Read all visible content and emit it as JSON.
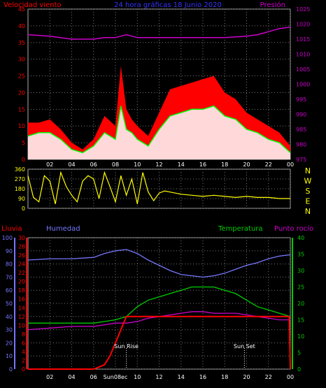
{
  "chart_data": [
    {
      "type": "line",
      "title": "24 hora gráficas   18 Junio 2020",
      "ylabel_left": "Velocidad viento",
      "ylabel_right": "Presión",
      "x_ticks": [
        "02",
        "04",
        "06",
        "08",
        "10",
        "12",
        "14",
        "16",
        "18",
        "20",
        "22",
        "00"
      ],
      "x_range": [
        0,
        24
      ],
      "y_left_ticks": [
        "0",
        "5",
        "10",
        "15",
        "20",
        "25",
        "30",
        "35",
        "40",
        "45"
      ],
      "y_left_range": [
        0,
        45
      ],
      "y_right_ticks": [
        "975",
        "980",
        "985",
        "990",
        "995",
        "1000",
        "1005",
        "1010",
        "1015",
        "1020",
        "1025"
      ],
      "y_right_range": [
        975,
        1025
      ],
      "grid": true,
      "colors": {
        "gust": "#ff0000",
        "wind": "#00ff00",
        "wind_fill": "#ffffff",
        "pressure": "#cc00cc",
        "title": "#3333ff"
      },
      "series": [
        {
          "role": "gust",
          "x": [
            0,
            1,
            2,
            3,
            4,
            5,
            6,
            7,
            8,
            8.5,
            9,
            9.5,
            10,
            11,
            12,
            13,
            14,
            15,
            16,
            17,
            18,
            19,
            20,
            21,
            22,
            23,
            24
          ],
          "values": [
            11,
            11,
            12,
            9,
            5,
            3,
            6,
            13,
            10,
            28,
            15,
            12,
            10,
            7,
            14,
            21,
            22,
            23,
            24,
            25,
            20,
            18,
            14,
            12,
            10,
            8,
            4
          ]
        },
        {
          "role": "wind",
          "x": [
            0,
            1,
            2,
            3,
            4,
            5,
            6,
            7,
            8,
            8.5,
            9,
            9.5,
            10,
            11,
            12,
            13,
            14,
            15,
            16,
            17,
            18,
            19,
            20,
            21,
            22,
            23,
            24
          ],
          "values": [
            7,
            8,
            8,
            6,
            3,
            2,
            4,
            8,
            6,
            16,
            9,
            8,
            6,
            4,
            9,
            13,
            14,
            15,
            15,
            16,
            13,
            12,
            9,
            8,
            6,
            5,
            2
          ]
        },
        {
          "role": "pressure",
          "x": [
            0,
            2,
            4,
            6,
            7,
            8,
            9,
            10,
            12,
            14,
            16,
            18,
            20,
            21,
            22,
            23,
            24
          ],
          "values": [
            1016.5,
            1016,
            1015,
            1015,
            1015.5,
            1015.5,
            1016.5,
            1015.5,
            1015.5,
            1015.5,
            1015.5,
            1015.5,
            1016,
            1016.5,
            1017.5,
            1018.5,
            1019
          ]
        }
      ]
    },
    {
      "type": "line",
      "ylabel": "",
      "y_ticks": [
        "0",
        "90",
        "180",
        "270",
        "360"
      ],
      "y_range": [
        0,
        360
      ],
      "direction_labels": [
        "N",
        "W",
        "S",
        "E",
        "N"
      ],
      "colors": {
        "direction": "#ffff00"
      },
      "series": [
        {
          "role": "direction",
          "x": [
            0,
            0.5,
            1,
            1.5,
            2,
            2.5,
            3,
            3.5,
            4,
            4.5,
            5,
            5.5,
            6,
            6.5,
            7,
            7.5,
            8,
            8.5,
            9,
            9.5,
            10,
            10.5,
            11,
            11.5,
            12,
            12.5,
            13,
            14,
            15,
            16,
            17,
            18,
            19,
            20,
            21,
            22,
            23,
            24
          ],
          "values": [
            300,
            100,
            60,
            300,
            250,
            40,
            330,
            200,
            120,
            60,
            250,
            300,
            270,
            90,
            330,
            200,
            60,
            300,
            120,
            270,
            40,
            330,
            150,
            70,
            140,
            160,
            150,
            130,
            120,
            110,
            120,
            110,
            100,
            110,
            100,
            100,
            90,
            90
          ]
        }
      ]
    },
    {
      "type": "line",
      "ylabel_left1": "Lluvia",
      "ylabel_left2": "Humedad",
      "ylabel_right1": "Temperatura",
      "ylabel_right2": "Punto rocío",
      "x_ticks": [
        "02",
        "04",
        "06",
        "Sun08ec",
        "10",
        "12",
        "14",
        "16",
        "18",
        "20",
        "22",
        "00"
      ],
      "humidity_ticks": [
        "0",
        "10",
        "20",
        "30",
        "40",
        "50",
        "60",
        "70",
        "80",
        "90",
        "100"
      ],
      "rain_ticks": [
        "0",
        "2",
        "4",
        "6",
        "8",
        "10",
        "12",
        "14",
        "16",
        "18",
        "20",
        "22",
        "24",
        "26",
        "28",
        "30"
      ],
      "temp_ticks": [
        "0",
        "5",
        "10",
        "15",
        "20",
        "25",
        "30",
        "35",
        "40"
      ],
      "annotations": [
        "Sun Rise",
        "Sun Set"
      ],
      "colors": {
        "rain": "#ff0000",
        "humidity": "#7777ff",
        "temperature": "#00cc00",
        "dewpoint": "#cc00cc"
      },
      "series": [
        {
          "role": "humidity",
          "x": [
            0,
            2,
            4,
            6,
            7,
            8,
            9,
            10,
            11,
            12,
            13,
            14,
            15,
            16,
            17,
            18,
            19,
            20,
            21,
            22,
            23,
            24
          ],
          "values": [
            83,
            84,
            84,
            85,
            88,
            90,
            91,
            88,
            83,
            79,
            75,
            72,
            71,
            70,
            71,
            73,
            76,
            79,
            81,
            84,
            86,
            87
          ]
        },
        {
          "role": "temperature",
          "x": [
            0,
            2,
            4,
            6,
            7,
            8,
            9,
            10,
            11,
            12,
            13,
            14,
            15,
            16,
            17,
            18,
            19,
            20,
            21,
            22,
            23,
            24
          ],
          "values": [
            14,
            14,
            14,
            14,
            14.5,
            15,
            16,
            19,
            21,
            22,
            23,
            24,
            25,
            25,
            25,
            24,
            23,
            21,
            19,
            18,
            17,
            16
          ]
        },
        {
          "role": "dewpoint",
          "x": [
            0,
            2,
            4,
            6,
            7,
            8,
            9,
            10,
            11,
            12,
            13,
            14,
            15,
            16,
            17,
            18,
            19,
            20,
            21,
            22,
            23,
            24
          ],
          "values": [
            12,
            12.5,
            13,
            13,
            13.5,
            14,
            14,
            14.5,
            15.5,
            16,
            16.5,
            17,
            17.5,
            17.5,
            17,
            17,
            17,
            16.5,
            16,
            15.5,
            15,
            15
          ]
        },
        {
          "role": "rain",
          "x": [
            0,
            5,
            6,
            6.5,
            7,
            7.5,
            8,
            8.5,
            9,
            10,
            12,
            14,
            16,
            18,
            20,
            22,
            23.9,
            24
          ],
          "values": [
            0,
            0,
            0,
            0.5,
            1,
            3,
            6,
            9,
            12,
            12,
            12,
            12,
            12,
            12,
            12,
            12,
            12,
            0
          ]
        }
      ]
    }
  ]
}
